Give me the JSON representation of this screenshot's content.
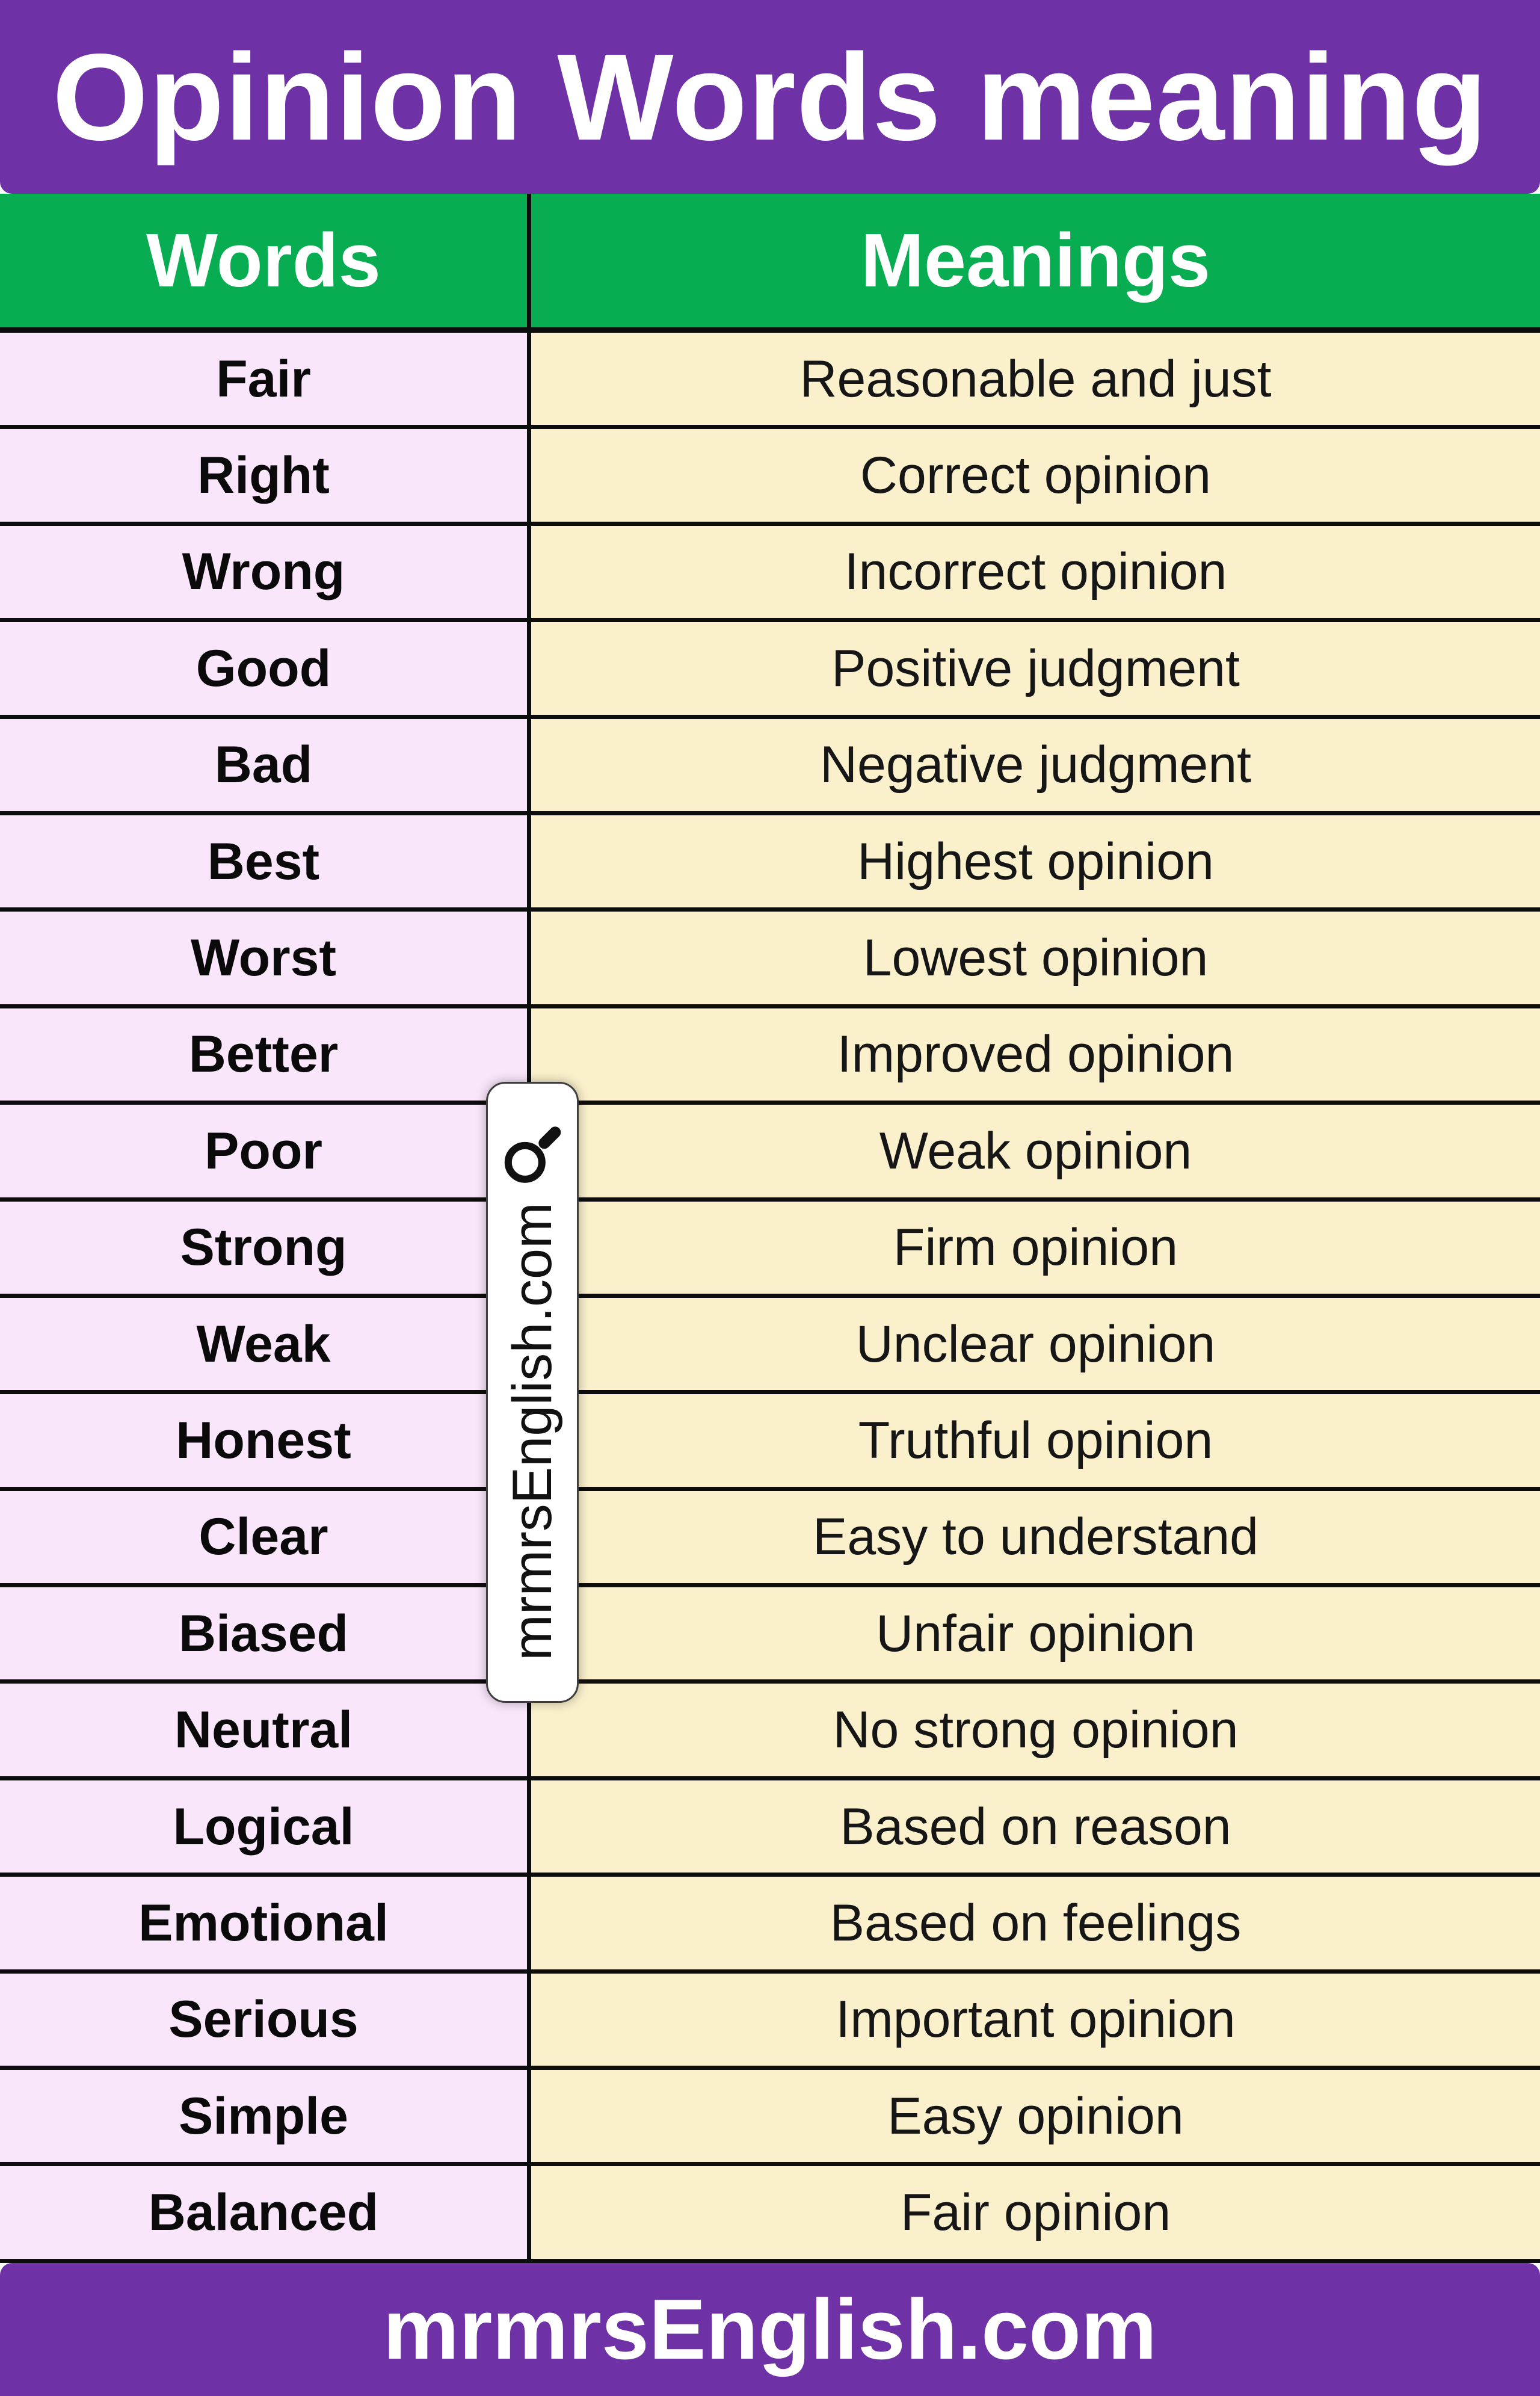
{
  "header": {
    "title": "Opinion Words meaning"
  },
  "table": {
    "columns": [
      "Words",
      "Meanings"
    ],
    "rows": [
      {
        "word": "Fair",
        "meaning": "Reasonable and just"
      },
      {
        "word": "Right",
        "meaning": "Correct opinion"
      },
      {
        "word": "Wrong",
        "meaning": "Incorrect opinion"
      },
      {
        "word": "Good",
        "meaning": "Positive judgment"
      },
      {
        "word": "Bad",
        "meaning": "Negative judgment"
      },
      {
        "word": "Best",
        "meaning": "Highest opinion"
      },
      {
        "word": "Worst",
        "meaning": "Lowest opinion"
      },
      {
        "word": "Better",
        "meaning": "Improved opinion"
      },
      {
        "word": "Poor",
        "meaning": "Weak opinion"
      },
      {
        "word": "Strong",
        "meaning": "Firm opinion"
      },
      {
        "word": "Weak",
        "meaning": "Unclear opinion"
      },
      {
        "word": "Honest",
        "meaning": "Truthful opinion"
      },
      {
        "word": "Clear",
        "meaning": "Easy to understand"
      },
      {
        "word": "Biased",
        "meaning": "Unfair opinion"
      },
      {
        "word": "Neutral",
        "meaning": "No strong opinion"
      },
      {
        "word": "Logical",
        "meaning": "Based on reason"
      },
      {
        "word": "Emotional",
        "meaning": "Based on feelings"
      },
      {
        "word": "Serious",
        "meaning": "Important opinion"
      },
      {
        "word": "Simple",
        "meaning": "Easy opinion"
      },
      {
        "word": "Balanced",
        "meaning": "Fair opinion"
      }
    ]
  },
  "watermark": {
    "text": "mrmrsEnglish.com",
    "icon": "magnifier-icon"
  },
  "footer": {
    "text": "mrmrsEnglish.com"
  },
  "colors": {
    "purple": "#6F31A6",
    "green": "#07AD50",
    "lavender": "#FAE6FB",
    "cream": "#FAF0CB",
    "line": "#0D0D0D",
    "white": "#FFFFFF",
    "ink": "#111111"
  }
}
